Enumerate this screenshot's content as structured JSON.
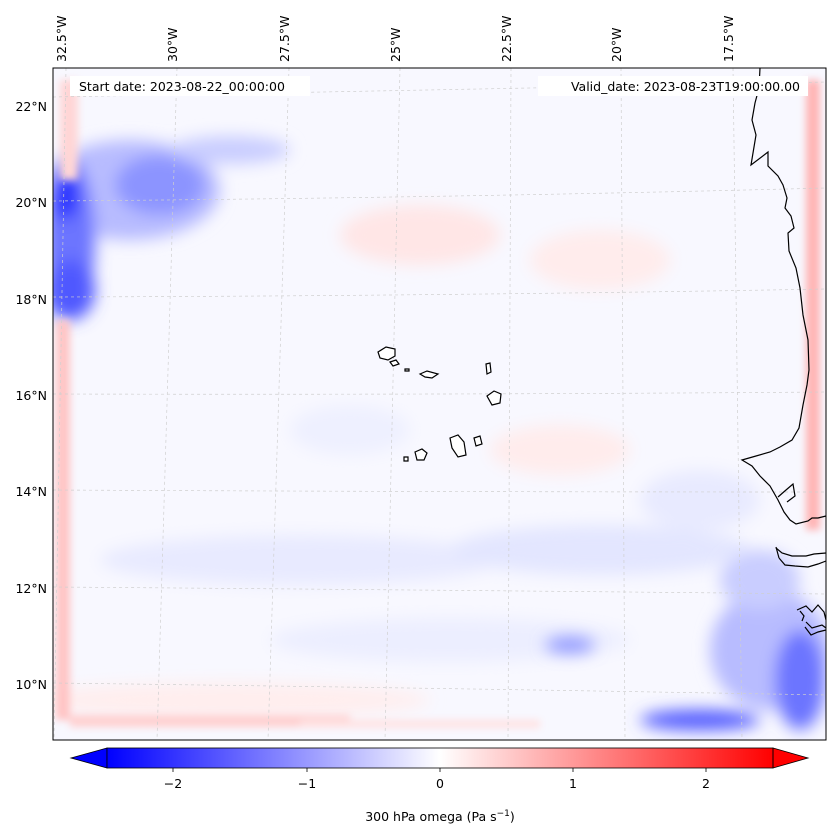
{
  "header": {
    "start_date": "Start date: 2023-08-22_00:00:00",
    "valid_date": "Valid_date: 2023-08-23T19:00:00.00"
  },
  "map": {
    "lon_labels": [
      "32.5°W",
      "30°W",
      "27.5°W",
      "25°W",
      "22.5°W",
      "20°W",
      "17.5°W"
    ],
    "lat_labels": [
      "22°N",
      "20°N",
      "18°N",
      "16°N",
      "14°N",
      "12°N",
      "10°N"
    ],
    "gridlines": "dashed",
    "field": "300 hPa omega",
    "colormap": "bwr",
    "colors": {
      "negative": "#0000ff",
      "zero": "#ffffff",
      "positive": "#ff0000",
      "coastline": "#000000"
    }
  },
  "colorbar": {
    "ticks": [
      "−2",
      "−1",
      "0",
      "1",
      "2"
    ],
    "tick_values": [
      -2,
      -1,
      0,
      1,
      2
    ],
    "range": [
      -2.5,
      2.5
    ],
    "extend": "both",
    "label_main": "300 hPa omega (Pa s",
    "label_sup": "−1",
    "label_end": ")"
  }
}
